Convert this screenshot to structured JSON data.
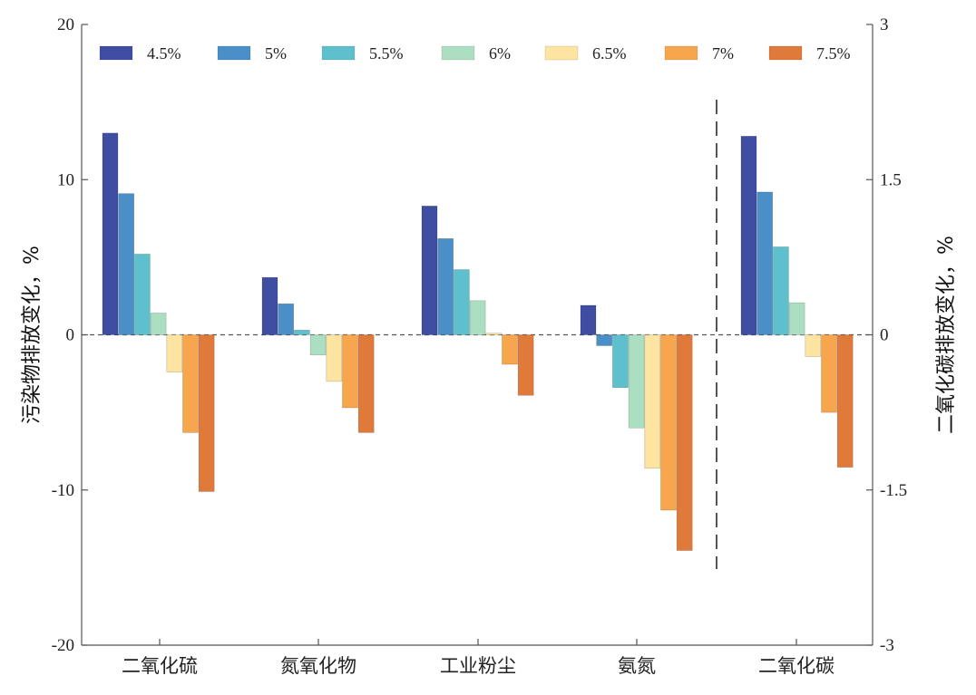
{
  "chart_data": {
    "type": "bar",
    "categories": [
      "二氧化硫",
      "氮氧化物",
      "工业粉尘",
      "氨氮",
      "二氧化碳"
    ],
    "series": [
      {
        "name": "4.5%",
        "color": "#3f4ea3",
        "values": [
          13.0,
          3.7,
          8.3,
          1.9,
          1.92
        ]
      },
      {
        "name": "5%",
        "color": "#4a8fc8",
        "values": [
          9.1,
          2.0,
          6.2,
          -0.7,
          1.38
        ]
      },
      {
        "name": "5.5%",
        "color": "#5ec0cc",
        "values": [
          5.2,
          0.3,
          4.2,
          -3.4,
          0.85
        ]
      },
      {
        "name": "6%",
        "color": "#acdfc1",
        "values": [
          1.4,
          -1.3,
          2.2,
          -6.0,
          0.31
        ]
      },
      {
        "name": "6.5%",
        "color": "#fde4a0",
        "values": [
          -2.4,
          -3.0,
          0.1,
          -8.6,
          -0.21
        ]
      },
      {
        "name": "7%",
        "color": "#f7a64e",
        "values": [
          -6.3,
          -4.7,
          -1.9,
          -11.3,
          -0.75
        ]
      },
      {
        "name": "7.5%",
        "color": "#e07a3a",
        "values": [
          -10.1,
          -6.3,
          -3.9,
          -13.9,
          -1.28
        ]
      }
    ],
    "left_axis": {
      "label": "污染物排放变化，%",
      "range": [
        -20,
        20
      ],
      "ticks": [
        20,
        10,
        0,
        -10,
        -20
      ],
      "tick_labels": [
        "20",
        "10",
        "0",
        "-10",
        "-20"
      ]
    },
    "right_axis": {
      "label": "二氧化碳排放变化，%",
      "range": [
        -3,
        3
      ],
      "ticks": [
        3,
        1.5,
        0,
        -1.5,
        -3
      ],
      "tick_labels": [
        "3",
        "1.5",
        "0",
        "-1.5",
        "-3"
      ],
      "applies_to_categories": [
        "二氧化碳"
      ]
    },
    "legend_position": "top",
    "separator": "dashed vertical line between 氨氮 and 二氧化碳",
    "zero_line": "dashed",
    "grid": false
  }
}
